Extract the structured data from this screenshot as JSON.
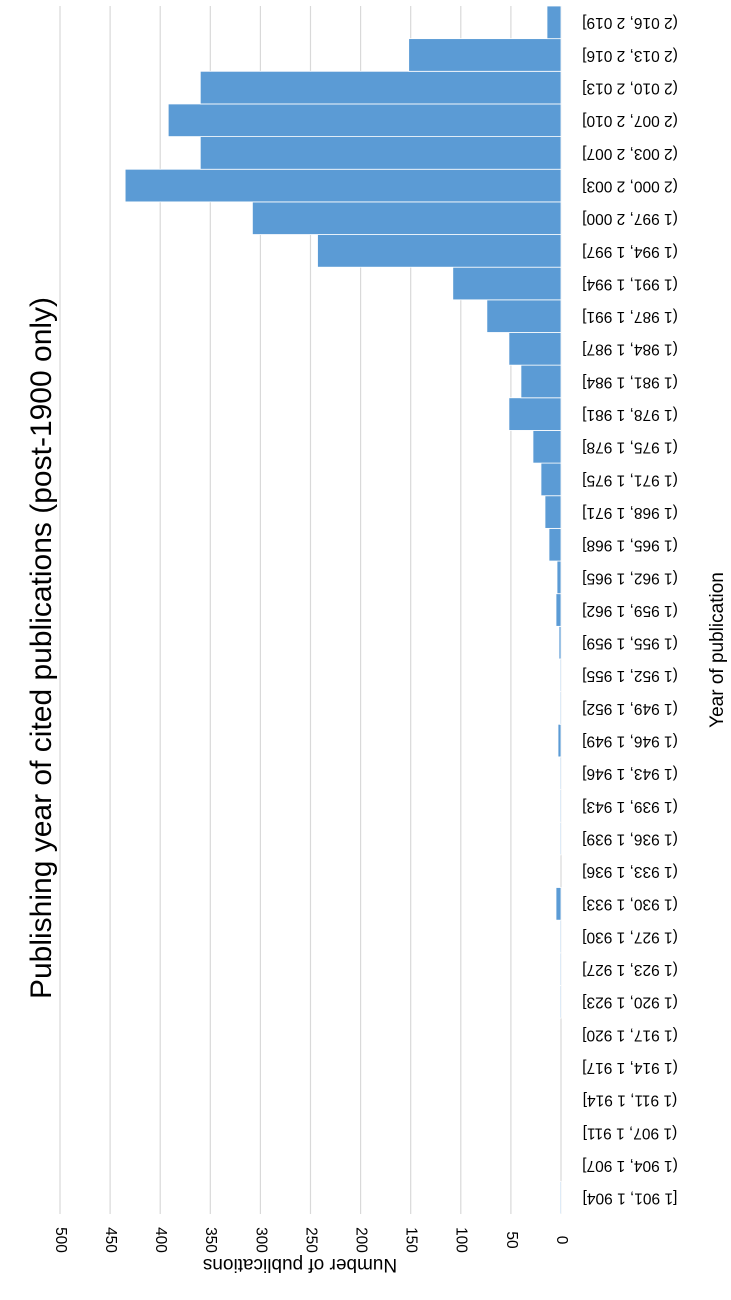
{
  "chart_data": {
    "type": "bar",
    "title": "Publishing year of cited publications (post-1900 only)",
    "xlabel": "Year of publication",
    "ylabel": "Number of publications",
    "ylim": [
      0,
      500
    ],
    "yticks": [
      0,
      50,
      100,
      150,
      200,
      250,
      300,
      350,
      400,
      450,
      500
    ],
    "grid": true,
    "bar_color": "#5b9bd5",
    "orientation": "rotated 90° clockwise (categories run bottom to top, values extend leftward)",
    "categories": [
      "[1 901, 1 904]",
      "(1 904, 1 907]",
      "(1 907, 1 911]",
      "(1 911, 1 914]",
      "(1 914, 1 917]",
      "(1 917, 1 920]",
      "(1 920, 1 923]",
      "(1 923, 1 927]",
      "(1 927, 1 930]",
      "(1 930, 1 933]",
      "(1 933, 1 936]",
      "(1 936, 1 939]",
      "(1 939, 1 943]",
      "(1 943, 1 946]",
      "(1 946, 1 949]",
      "(1 949, 1 952]",
      "(1 952, 1 955]",
      "(1 955, 1 959]",
      "(1 959, 1 962]",
      "(1 962, 1 965]",
      "(1 965, 1 968]",
      "(1 968, 1 971]",
      "(1 971, 1 975]",
      "(1 975, 1 978]",
      "(1 978, 1 981]",
      "(1 981, 1 984]",
      "(1 984, 1 987]",
      "(1 987, 1 991]",
      "(1 991, 1 994]",
      "(1 994, 1 997]",
      "(1 997, 2 000]",
      "(2 000, 2 003]",
      "(2 003, 2 007]",
      "(2 007, 2 010]",
      "(2 010, 2 013]",
      "(2 013, 2 016]",
      "(2 016, 2 019]"
    ],
    "values": [
      1,
      0,
      0,
      0,
      0,
      0,
      1,
      1,
      1,
      5,
      0,
      1,
      1,
      1,
      3,
      1,
      1,
      2,
      5,
      4,
      12,
      16,
      20,
      28,
      52,
      40,
      52,
      74,
      108,
      243,
      308,
      435,
      360,
      392,
      360,
      152,
      14
    ]
  }
}
